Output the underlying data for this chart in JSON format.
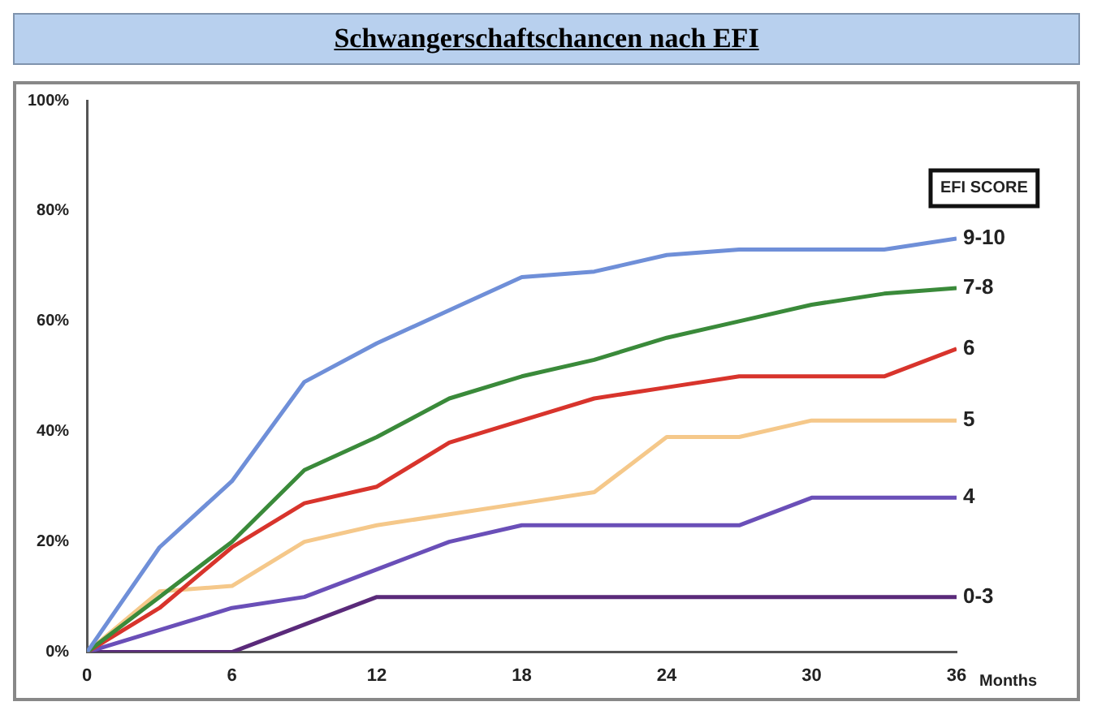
{
  "chart_data": {
    "type": "line",
    "title": "Schwangerschaftschancen nach EFI",
    "xlabel": "Months",
    "legend_title": "EFI SCORE",
    "x": [
      0,
      3,
      6,
      9,
      12,
      15,
      18,
      21,
      24,
      27,
      30,
      33,
      36
    ],
    "xlim": [
      0,
      36
    ],
    "xticks": [
      0,
      6,
      12,
      18,
      24,
      30,
      36
    ],
    "ylim": [
      0,
      100
    ],
    "yticks": [
      {
        "value": 0,
        "label": "0%"
      },
      {
        "value": 20,
        "label": "20%"
      },
      {
        "value": 40,
        "label": "40%"
      },
      {
        "value": 60,
        "label": "60%"
      },
      {
        "value": 80,
        "label": "80%"
      },
      {
        "value": 100,
        "label": "100%"
      }
    ],
    "grid": false,
    "marker": "none",
    "series": [
      {
        "name": "9-10",
        "color": "#6f8fd8",
        "values": [
          0,
          19,
          31,
          49,
          56,
          62,
          68,
          69,
          72,
          73,
          73,
          73,
          75
        ]
      },
      {
        "name": "7-8",
        "color": "#3a8a3a",
        "values": [
          0,
          10,
          20,
          33,
          39,
          46,
          50,
          53,
          57,
          60,
          63,
          65,
          66
        ]
      },
      {
        "name": "6",
        "color": "#d8342c",
        "values": [
          0,
          8,
          19,
          27,
          30,
          38,
          42,
          46,
          48,
          50,
          50,
          50,
          55
        ]
      },
      {
        "name": "5",
        "color": "#f5c88a",
        "values": [
          0,
          11,
          12,
          20,
          23,
          25,
          27,
          29,
          39,
          39,
          42,
          42,
          42
        ]
      },
      {
        "name": "4",
        "color": "#6a4fb8",
        "values": [
          0,
          4,
          8,
          10,
          15,
          20,
          23,
          23,
          23,
          23,
          28,
          28,
          28
        ]
      },
      {
        "name": "0-3",
        "color": "#5a2a7a",
        "values": [
          0,
          0,
          0,
          5,
          10,
          10,
          10,
          10,
          10,
          10,
          10,
          10,
          10
        ]
      }
    ]
  }
}
